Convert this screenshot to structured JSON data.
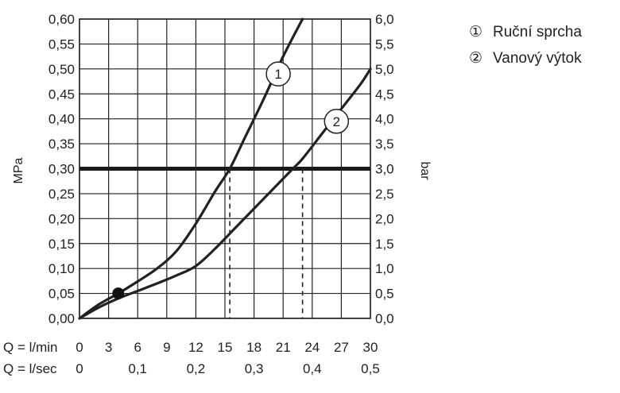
{
  "chart_data": {
    "type": "line",
    "ylabel_left": "MPa",
    "ylabel_right": "bar",
    "ylim": [
      0,
      0.6
    ],
    "yticks_left": [
      "0,00",
      "0,05",
      "0,10",
      "0,15",
      "0,20",
      "0,25",
      "0,30",
      "0,35",
      "0,40",
      "0,45",
      "0,50",
      "0,55",
      "0,60"
    ],
    "yticks_right": [
      "0,0",
      "0,5",
      "1,0",
      "1,5",
      "2,0",
      "2,5",
      "3,0",
      "3,5",
      "4,0",
      "4,5",
      "5,0",
      "5,5",
      "6,0"
    ],
    "xlim": [
      0,
      30
    ],
    "x_label_lmin": "Q = l/min",
    "xticks_lmin": [
      "0",
      "3",
      "6",
      "9",
      "12",
      "15",
      "18",
      "21",
      "24",
      "27",
      "30"
    ],
    "x_label_lsec": "Q = l/sec",
    "xticks_lsec": [
      {
        "x": 0,
        "label": "0"
      },
      {
        "x": 6,
        "label": "0,1"
      },
      {
        "x": 12,
        "label": "0,2"
      },
      {
        "x": 18,
        "label": "0,3"
      },
      {
        "x": 24,
        "label": "0,4"
      },
      {
        "x": 30,
        "label": "0,5"
      }
    ],
    "series": [
      {
        "name": "Ruční sprcha",
        "marker": "1",
        "x": [
          0,
          2,
          4,
          6,
          8,
          10,
          12,
          14,
          15.5,
          17,
          19,
          21,
          23
        ],
        "y": [
          0,
          0.028,
          0.05,
          0.074,
          0.1,
          0.135,
          0.19,
          0.255,
          0.3,
          0.36,
          0.44,
          0.525,
          0.6
        ],
        "marker_at": [
          20.5,
          0.49
        ]
      },
      {
        "name": "Vanový výtok",
        "marker": "2",
        "x": [
          0,
          2,
          4,
          6,
          8,
          10,
          12,
          14,
          16,
          18,
          20,
          22,
          23,
          25,
          27,
          29,
          30
        ],
        "y": [
          0,
          0.022,
          0.04,
          0.055,
          0.07,
          0.086,
          0.105,
          0.14,
          0.18,
          0.22,
          0.26,
          0.3,
          0.32,
          0.37,
          0.42,
          0.47,
          0.5
        ],
        "marker_at": [
          26.5,
          0.395
        ]
      }
    ],
    "reference_line": {
      "y": 0.3
    },
    "dashed_markers": [
      15.5,
      23
    ],
    "point": {
      "x": 4,
      "y": 0.05
    },
    "grid": true,
    "legend_position": "top-right",
    "legend": [
      {
        "symbol": "①",
        "label": "Ruční sprcha"
      },
      {
        "symbol": "②",
        "label": "Vanový výtok"
      }
    ]
  }
}
